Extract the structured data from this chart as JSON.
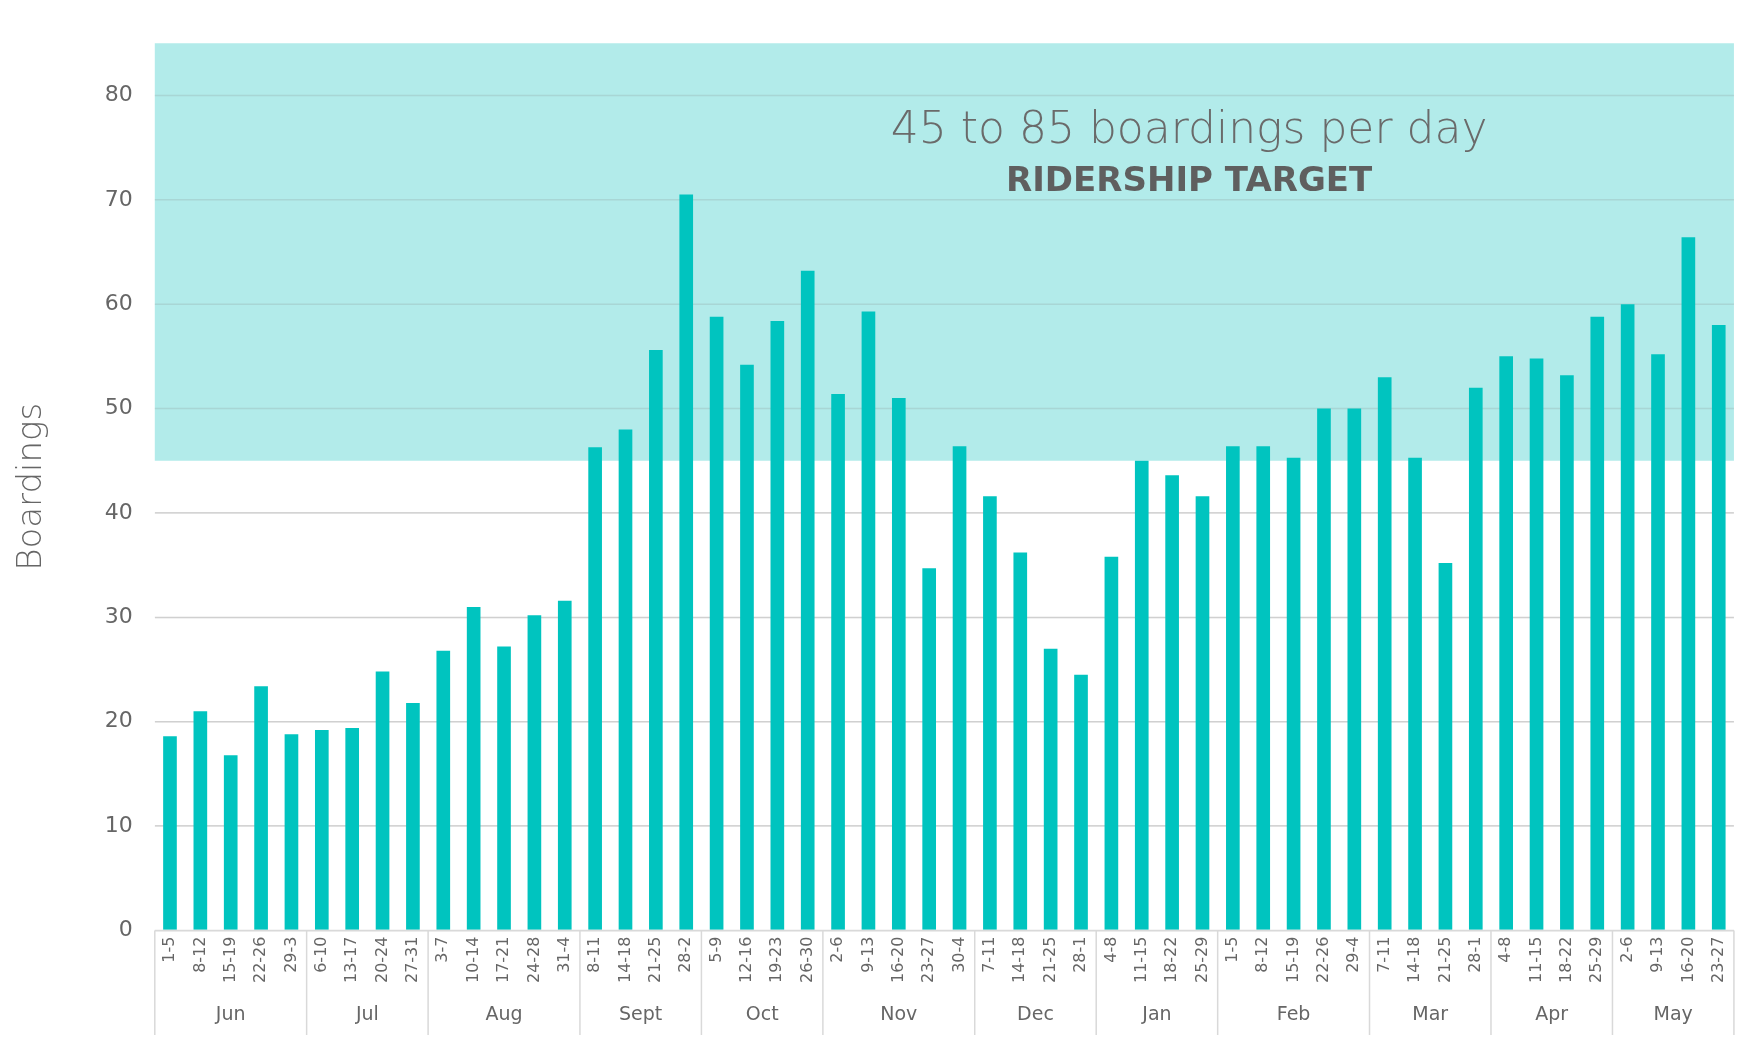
{
  "chart_data": {
    "type": "bar",
    "ylabel": "Boardings",
    "categories": [
      "1-5",
      "8-12",
      "15-19",
      "22-26",
      "29-3",
      "6-10",
      "13-17",
      "20-24",
      "27-31",
      "3-7",
      "10-14",
      "17-21",
      "24-28",
      "31-4",
      "8-11",
      "14-18",
      "21-25",
      "28-2",
      "5-9",
      "12-16",
      "19-23",
      "26-30",
      "2-6",
      "9-13",
      "16-20",
      "23-27",
      "30-4",
      "7-11",
      "14-18",
      "21-25",
      "28-1",
      "4-8",
      "11-15",
      "18-22",
      "25-29",
      "1-5",
      "8-12",
      "15-19",
      "22-26",
      "29-4",
      "7-11",
      "14-18",
      "21-25",
      "28-1",
      "4-8",
      "11-15",
      "18-22",
      "25-29",
      "2-6",
      "9-13",
      "16-20",
      "23-27"
    ],
    "series": [
      {
        "color": "#00c4bf",
        "values": [
          18.6,
          21,
          16.8,
          23.4,
          18.8,
          19.2,
          19.4,
          24.8,
          21.8,
          26.8,
          31,
          27.2,
          30.2,
          31.6,
          46.3,
          48,
          55.6,
          70.5,
          58.8,
          54.2,
          58.4,
          63.2,
          51.4,
          59.3,
          51,
          34.7,
          46.4,
          41.6,
          36.2,
          27,
          24.5,
          35.8,
          45,
          43.6,
          41.6,
          46.4,
          46.4,
          45.3,
          50,
          50,
          53,
          45.3,
          35.2,
          52,
          55,
          54.8,
          53.2,
          58.8,
          60,
          55.2,
          66.4,
          58
        ]
      }
    ],
    "ylim": [
      0,
      85
    ],
    "yticks": [
      0,
      10,
      20,
      30,
      40,
      50,
      60,
      70,
      80
    ],
    "grid": "y",
    "legend": false,
    "bands": [
      {
        "axis": "y",
        "from": 45,
        "to": 85,
        "label": "RIDERSHIP TARGET",
        "color": "#b2ebea"
      }
    ],
    "annotations": [
      "45 to 85 boardings per day",
      "Jun",
      "Jul",
      "Aug",
      "Sept",
      "Oct",
      "Nov",
      "Dec",
      "Jan",
      "Feb",
      "Mar",
      "Apr",
      "May"
    ]
  }
}
